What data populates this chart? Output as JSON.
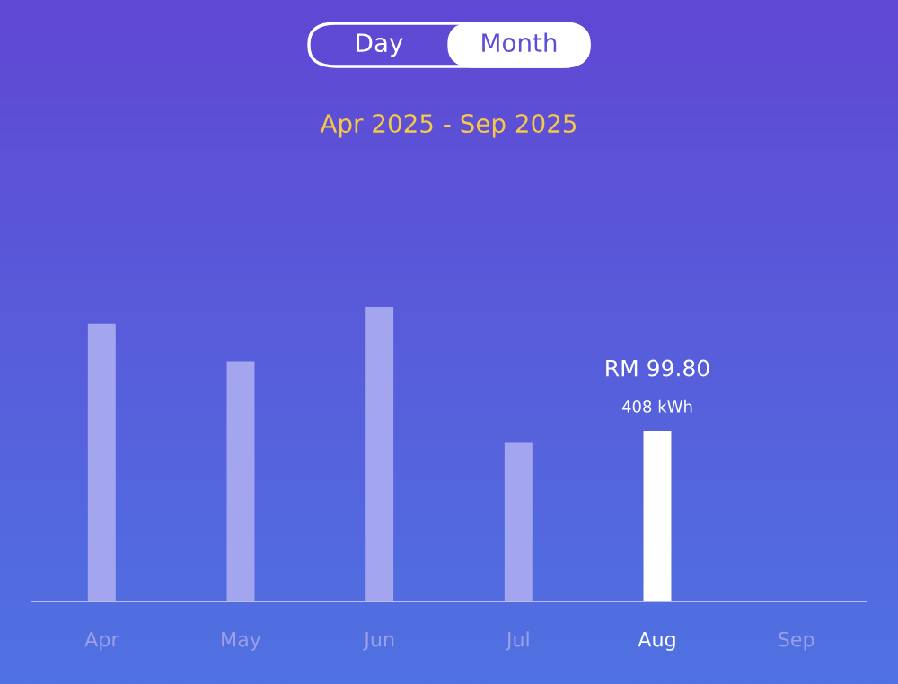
{
  "chart_data": {
    "type": "bar",
    "title": "Apr 2025 - Sep 2025",
    "ylim": [
      0,
      704
    ],
    "categories": [
      "Apr",
      "May",
      "Jun",
      "Jul",
      "Aug",
      "Sep"
    ],
    "values": [
      664,
      574,
      704,
      381,
      408,
      null
    ],
    "colors": [
      "#a3a6ee",
      "#a3a6ee",
      "#a3a6ee",
      "#a3a6ee",
      "#ffffff",
      "#a3a6ee"
    ],
    "value_labels": [
      null,
      null,
      null,
      null,
      "RM 99.80\n408 kWh",
      null
    ],
    "annotations": [
      "Day",
      "Month"
    ],
    "grid": false,
    "legend": false
  }
}
